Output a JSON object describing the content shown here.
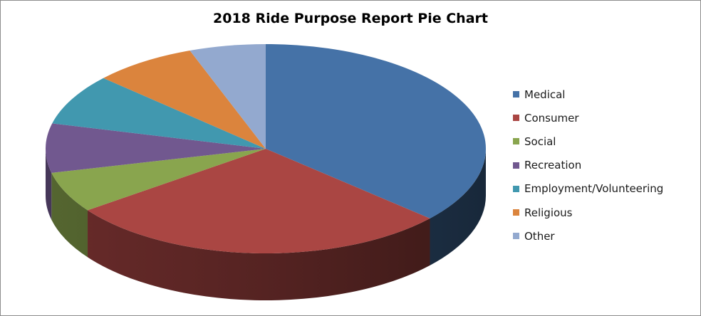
{
  "chart_data": {
    "type": "pie",
    "title": "2018 Ride Purpose Report Pie Chart",
    "three_d": true,
    "legend_position": "right",
    "categories": [
      "Medical",
      "Consumer",
      "Social",
      "Recreation",
      "Employment/Volunteering",
      "Religious",
      "Other"
    ],
    "values": [
      36.6,
      28.4,
      6.3,
      7.6,
      7.9,
      7.6,
      5.6
    ],
    "colors": [
      "#4572A7",
      "#AA4643",
      "#89A54E",
      "#71588F",
      "#4198AF",
      "#DB843D",
      "#93A9CF"
    ]
  }
}
